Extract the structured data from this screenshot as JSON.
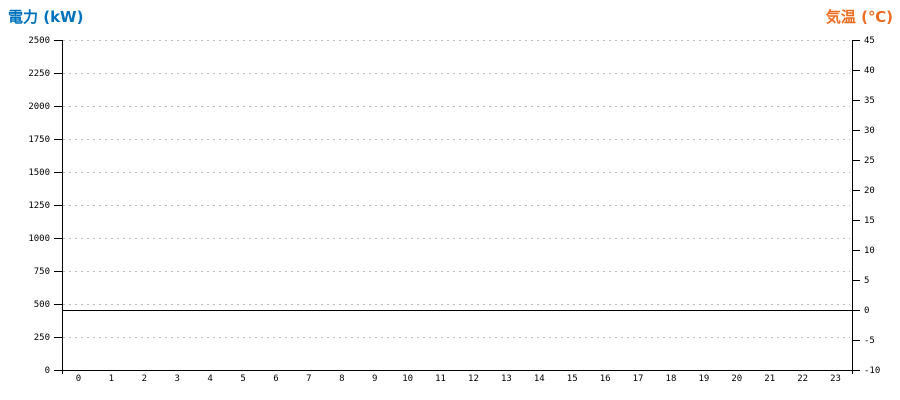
{
  "chart_data": {
    "type": "line",
    "description": "24-hour power and temperature chart with no plotted series; only axes, gridlines and a zero-degree reference line are visible",
    "left_axis": {
      "title": "電力 (kW)",
      "min": 0,
      "max": 2500,
      "step": 250,
      "ticks": [
        "2500",
        "2250",
        "2000",
        "1750",
        "1500",
        "1250",
        "1000",
        "750",
        "500",
        "250",
        "0"
      ]
    },
    "right_axis": {
      "title": "気温 (℃)",
      "min": -10,
      "max": 45,
      "step": 5,
      "ticks": [
        "45",
        "40",
        "35",
        "30",
        "25",
        "20",
        "15",
        "10",
        "5",
        "0",
        "-5",
        "-10"
      ]
    },
    "x_axis": {
      "labels": [
        "0",
        "1",
        "2",
        "3",
        "4",
        "5",
        "6",
        "7",
        "8",
        "9",
        "10",
        "11",
        "12",
        "13",
        "14",
        "15",
        "16",
        "17",
        "18",
        "19",
        "20",
        "21",
        "22",
        "23"
      ]
    },
    "series": [],
    "reference_line": {
      "axis": "right",
      "value": 0
    },
    "grid": true,
    "legend": "none",
    "colors": {
      "power_title_blue": "#0072BC",
      "temperature_title_orange": "#EB6E23",
      "gridline_gray": "#BDBDBD",
      "axis_black": "#000000"
    }
  }
}
